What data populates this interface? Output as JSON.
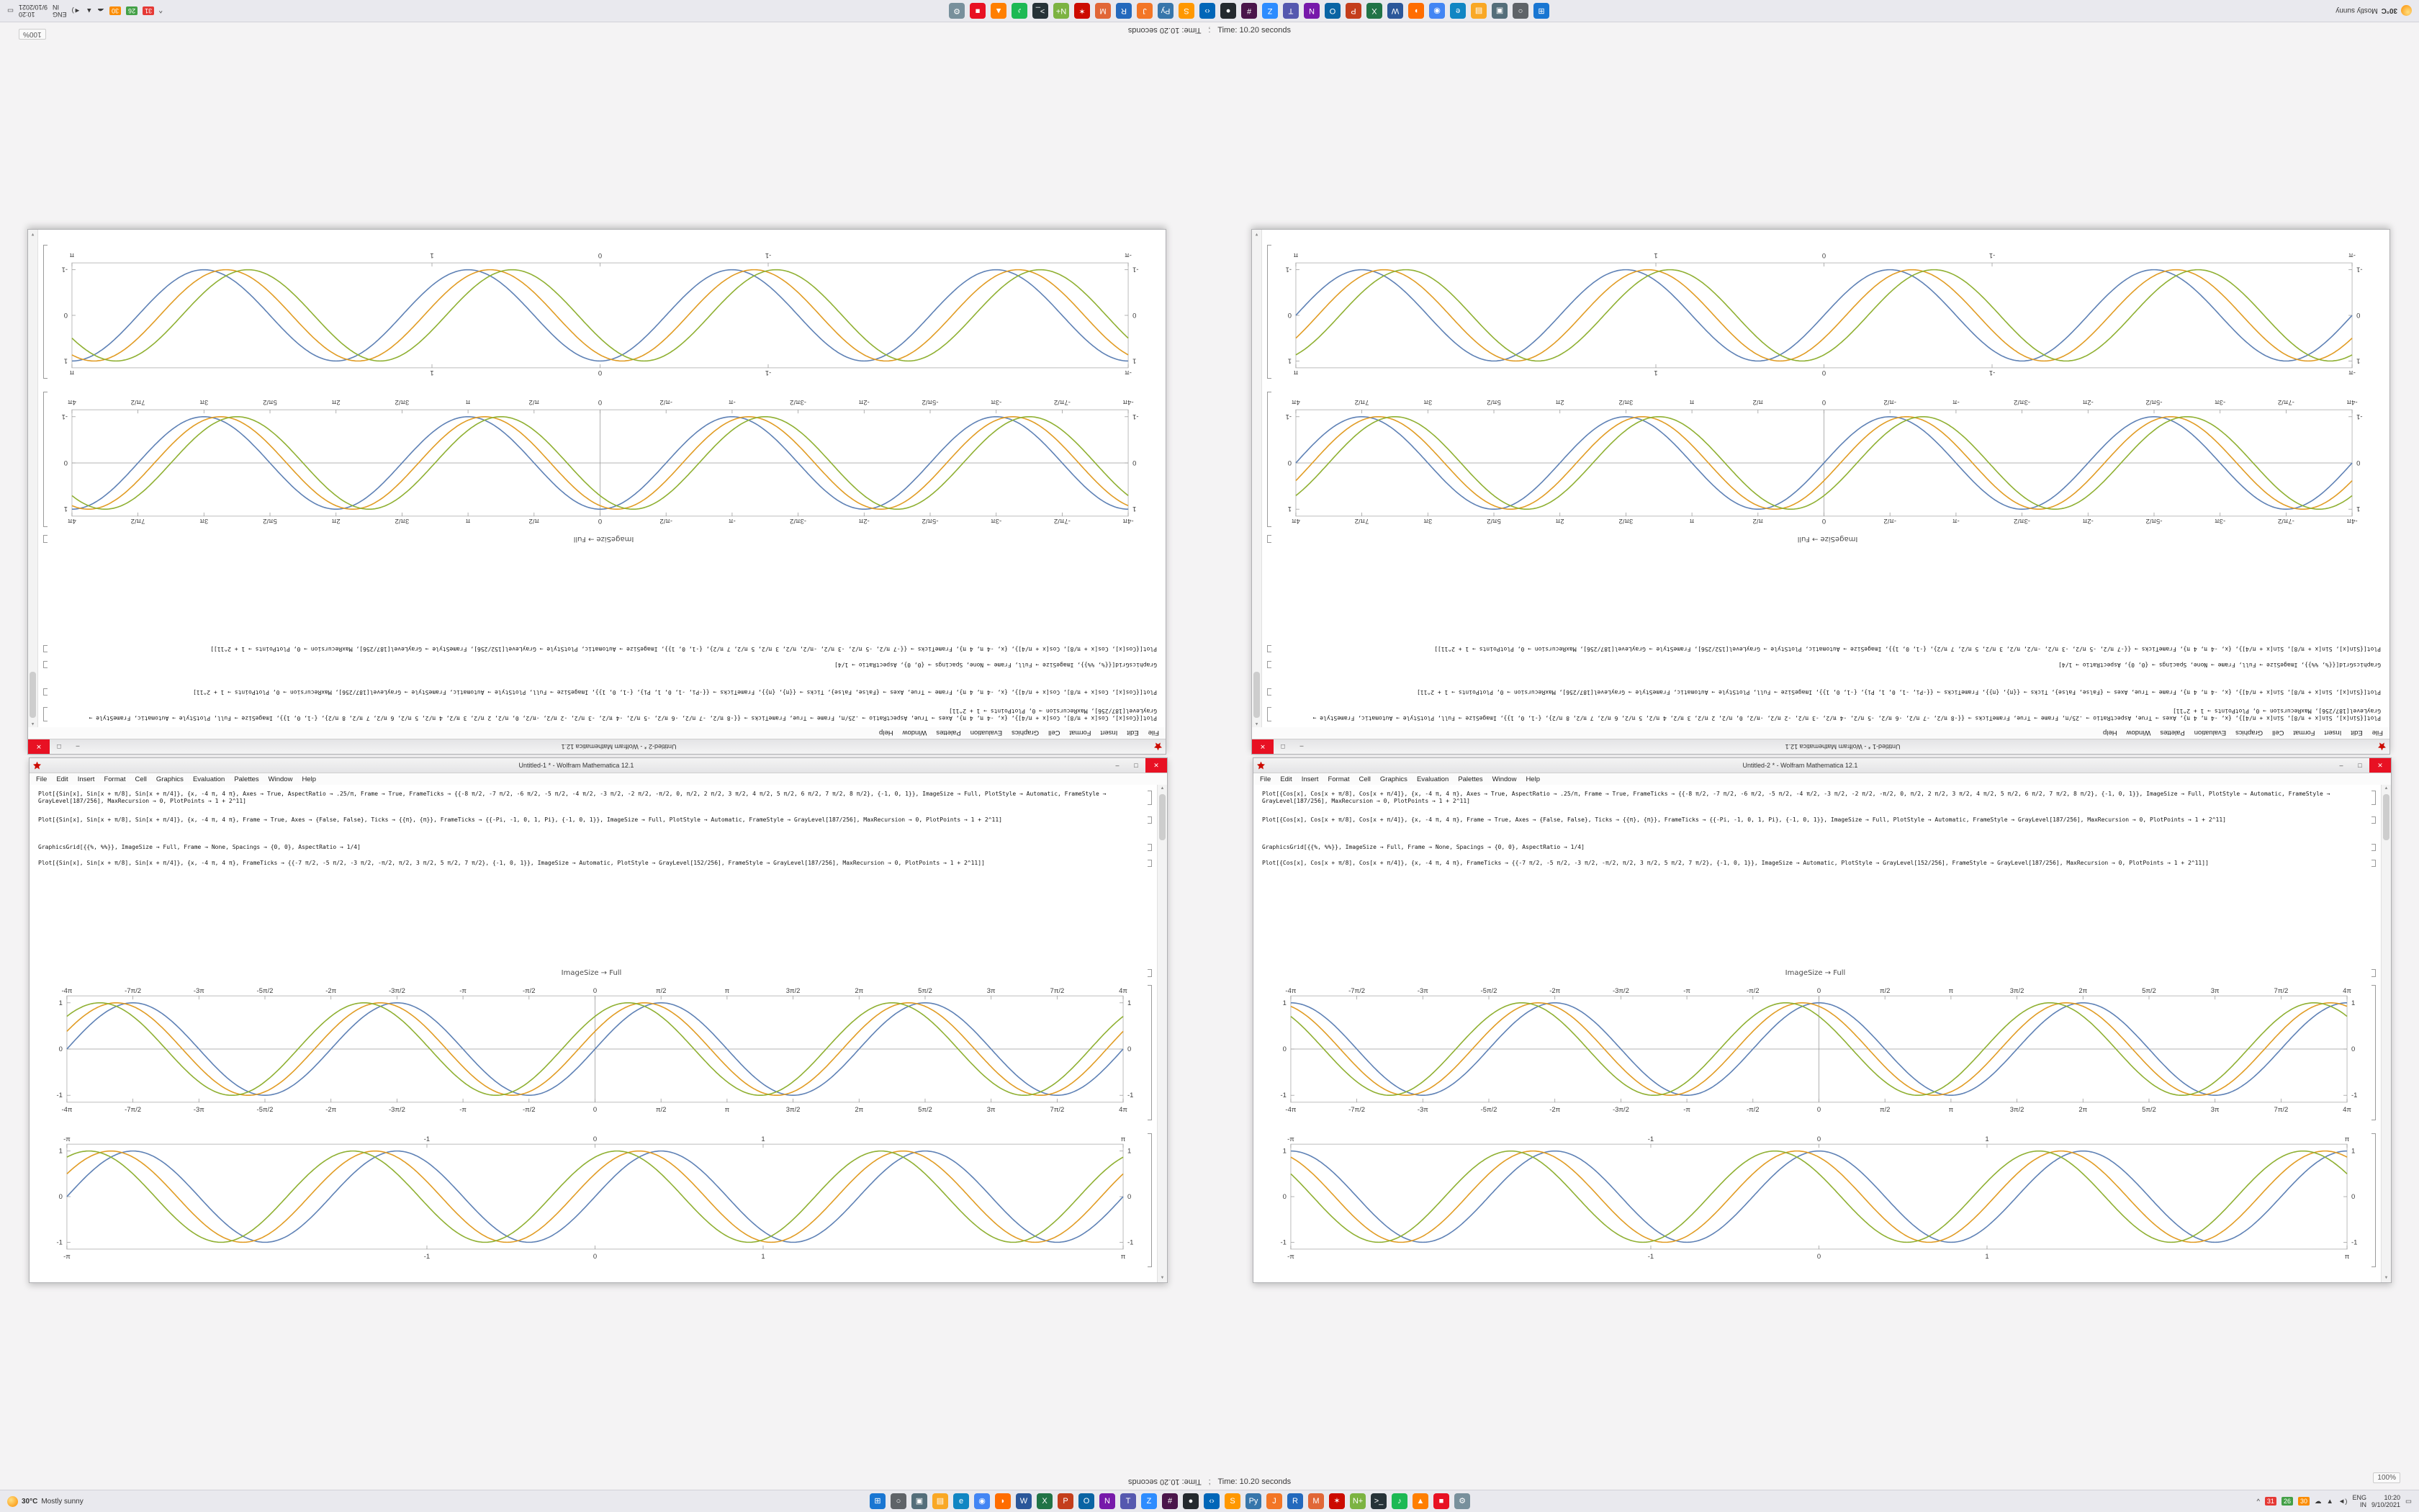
{
  "app": {
    "status_time": "Time: 10.20 seconds",
    "status_separator": ";",
    "zoom_badge": "100%"
  },
  "menus": [
    "File",
    "Edit",
    "Insert",
    "Format",
    "Cell",
    "Graphics",
    "Evaluation",
    "Palettes",
    "Window",
    "Help"
  ],
  "windows": [
    {
      "title": "Untitled-1 * - Wolfram Mathematica 12.1",
      "controls": {
        "minimize": "–",
        "maximize": "□",
        "close": "✕"
      },
      "cells": [
        {
          "type": "code",
          "lines": [
            "Plot[{Sin[x], Sin[x + π/8], Sin[x + π/4]}, {x, -4 π, 4 π}, Axes → True, AspectRatio → .25/π, Frame → True, FrameTicks → {{-8 π/2, -7 π/2, -6 π/2, -5 π/2, -4 π/2, -3 π/2, -2 π/2, -π/2, 0, π/2, 2 π/2, 3 π/2, 4 π/2, 5 π/2, 6 π/2, 7 π/2, 8 π/2}, {-1, 0, 1}}, ImageSize → Full, PlotStyle → Automatic, FrameStyle → GrayLevel[187/256], MaxRecursion → 0, PlotPoints → 1 + 2^11]"
          ]
        },
        {
          "type": "code",
          "lines": [
            "Plot[{Sin[x], Sin[x + π/8], Sin[x + π/4]}, {x, -4 π, 4 π}, Frame → True, Axes → {False, False}, Ticks → {{π}, {π}}, FrameTicks → {{-Pi, -1, 0, 1, Pi}, {-1, 0, 1}}, ImageSize → Full, PlotStyle → Automatic, FrameStyle → GrayLevel[187/256], MaxRecursion → 0, PlotPoints → 1 + 2^11]"
          ]
        },
        {
          "type": "code",
          "lines": [
            "GraphicsGrid[{{%, %%}}, ImageSize → Full, Frame → None, Spacings → {0, 0}, AspectRatio → 1/4]"
          ]
        },
        {
          "type": "code",
          "lines": [
            "Plot[{Sin[x], Sin[x + π/8], Sin[x + π/4]}, {x, -4 π, 4 π}, FrameTicks → {{-7 π/2, -5 π/2, -3 π/2, -π/2, π/2, 3 π/2, 5 π/2, 7 π/2}, {-1, 0, 1}}, ImageSize → Automatic, PlotStyle → GrayLevel[152/256], FrameStyle → GrayLevel[187/256], MaxRecursion → 0, PlotPoints → 1 + 2^11]]"
          ]
        },
        {
          "type": "caption",
          "text": "ImageSize → Full"
        },
        {
          "type": "plot",
          "chart": 0
        },
        {
          "type": "plot",
          "chart": 1
        }
      ]
    },
    {
      "title": "Untitled-2 * - Wolfram Mathematica 12.1",
      "controls": {
        "minimize": "–",
        "maximize": "□",
        "close": "✕"
      },
      "cells": [
        {
          "type": "code",
          "lines": [
            "Plot[{Cos[x], Cos[x + π/8], Cos[x + π/4]}, {x, -4 π, 4 π}, Axes → True, AspectRatio → .25/π, Frame → True, FrameTicks → {{-8 π/2, -7 π/2, -6 π/2, -5 π/2, -4 π/2, -3 π/2, -2 π/2, -π/2, 0, π/2, 2 π/2, 3 π/2, 4 π/2, 5 π/2, 6 π/2, 7 π/2, 8 π/2}, {-1, 0, 1}}, ImageSize → Full, PlotStyle → Automatic, FrameStyle → GrayLevel[187/256], MaxRecursion → 0, PlotPoints → 1 + 2^11]"
          ]
        },
        {
          "type": "code",
          "lines": [
            "Plot[{Cos[x], Cos[x + π/8], Cos[x + π/4]}, {x, -4 π, 4 π}, Frame → True, Axes → {False, False}, Ticks → {{π}, {π}}, FrameTicks → {{-Pi, -1, 0, 1, Pi}, {-1, 0, 1}}, ImageSize → Full, PlotStyle → Automatic, FrameStyle → GrayLevel[187/256], MaxRecursion → 0, PlotPoints → 1 + 2^11]"
          ]
        },
        {
          "type": "code",
          "lines": [
            "GraphicsGrid[{{%, %%}}, ImageSize → Full, Frame → None, Spacings → {0, 0}, AspectRatio → 1/4]"
          ]
        },
        {
          "type": "code",
          "lines": [
            "Plot[{Cos[x], Cos[x + π/8], Cos[x + π/4]}, {x, -4 π, 4 π}, FrameTicks → {{-7 π/2, -5 π/2, -3 π/2, -π/2, π/2, 3 π/2, 5 π/2, 7 π/2}, {-1, 0, 1}}, ImageSize → Automatic, PlotStyle → GrayLevel[152/256], FrameStyle → GrayLevel[187/256], MaxRecursion → 0, PlotPoints → 1 + 2^11]]"
          ]
        },
        {
          "type": "caption",
          "text": "ImageSize → Full"
        },
        {
          "type": "plot",
          "chart": 2
        },
        {
          "type": "plot",
          "chart": 3
        }
      ]
    }
  ],
  "chart_data": [
    {
      "id": "left-window-upper-plot",
      "type": "line",
      "title": "",
      "functions": [
        "Sin[x]",
        "Sin[x + π/8]",
        "Sin[x + π/4]"
      ],
      "base": "sin",
      "k": 1,
      "phases": [
        0,
        0.3927,
        0.7854
      ],
      "x_range": [
        -12.566,
        12.566
      ],
      "y_range": [
        -1.15,
        1.15
      ],
      "x_ticks": [
        "-4π",
        "-7π/2",
        "-3π",
        "-5π/2",
        "-2π",
        "-3π/2",
        "-π",
        "-π/2",
        "0",
        "π/2",
        "π",
        "3π/2",
        "2π",
        "5π/2",
        "3π",
        "7π/2",
        "4π"
      ],
      "x_tick_values": [
        -12.566,
        -10.996,
        -9.425,
        -7.854,
        -6.283,
        -4.712,
        -3.1416,
        -1.5708,
        0,
        1.5708,
        3.1416,
        4.712,
        6.283,
        7.854,
        9.425,
        10.996,
        12.566
      ],
      "y_ticks": [
        "-1",
        "0",
        "1"
      ],
      "y_tick_values": [
        -1,
        0,
        1
      ],
      "axes": true,
      "frame": true,
      "grid": false,
      "legend": "none",
      "colors": [
        "#5e81b5",
        "#e19c24",
        "#8fb032"
      ]
    },
    {
      "id": "left-window-lower-plot",
      "type": "line",
      "title": "",
      "functions": [
        "Sin[4 x]",
        "Sin[4 x + π/6]",
        "Sin[4 x + π/3]"
      ],
      "base": "sin",
      "k": 4,
      "phases": [
        0,
        0.5236,
        1.0472
      ],
      "x_range": [
        -3.1416,
        3.1416
      ],
      "y_range": [
        -1.15,
        1.15
      ],
      "x_ticks": [
        "-π",
        "-1",
        "0",
        "1",
        "π"
      ],
      "x_tick_values": [
        -3.1416,
        -1,
        0,
        1,
        3.1416
      ],
      "y_ticks": [
        "-1",
        "0",
        "1"
      ],
      "y_tick_values": [
        -1,
        0,
        1
      ],
      "axes": false,
      "frame": true,
      "grid": false,
      "legend": "none",
      "colors": [
        "#5e81b5",
        "#e19c24",
        "#8fb032"
      ]
    },
    {
      "id": "right-window-upper-plot",
      "type": "line",
      "title": "",
      "functions": [
        "Cos[x]",
        "Cos[x + π/8]",
        "Cos[x + π/4]"
      ],
      "base": "cos",
      "k": 1,
      "phases": [
        0,
        0.3927,
        0.7854
      ],
      "x_range": [
        -12.566,
        12.566
      ],
      "y_range": [
        -1.15,
        1.15
      ],
      "x_ticks": [
        "-4π",
        "-7π/2",
        "-3π",
        "-5π/2",
        "-2π",
        "-3π/2",
        "-π",
        "-π/2",
        "0",
        "π/2",
        "π",
        "3π/2",
        "2π",
        "5π/2",
        "3π",
        "7π/2",
        "4π"
      ],
      "x_tick_values": [
        -12.566,
        -10.996,
        -9.425,
        -7.854,
        -6.283,
        -4.712,
        -3.1416,
        -1.5708,
        0,
        1.5708,
        3.1416,
        4.712,
        6.283,
        7.854,
        9.425,
        10.996,
        12.566
      ],
      "y_ticks": [
        "-1",
        "0",
        "1"
      ],
      "y_tick_values": [
        -1,
        0,
        1
      ],
      "axes": true,
      "frame": true,
      "grid": false,
      "legend": "none",
      "colors": [
        "#5e81b5",
        "#e19c24",
        "#8fb032"
      ]
    },
    {
      "id": "right-window-lower-plot",
      "type": "line",
      "title": "",
      "functions": [
        "Cos[4 x]",
        "Cos[4 x + π/6]",
        "Cos[4 x + π/3]"
      ],
      "base": "cos",
      "k": 4,
      "phases": [
        0,
        0.5236,
        1.0472
      ],
      "x_range": [
        -3.1416,
        3.1416
      ],
      "y_range": [
        -1.15,
        1.15
      ],
      "x_ticks": [
        "-π",
        "-1",
        "0",
        "1",
        "π"
      ],
      "x_tick_values": [
        -3.1416,
        -1,
        0,
        1,
        3.1416
      ],
      "y_ticks": [
        "-1",
        "0",
        "1"
      ],
      "y_tick_values": [
        -1,
        0,
        1
      ],
      "axes": false,
      "frame": true,
      "grid": false,
      "legend": "none",
      "colors": [
        "#5e81b5",
        "#e19c24",
        "#8fb032"
      ]
    }
  ],
  "taskbar": {
    "widget": {
      "temp": "30°C",
      "condition": "Mostly sunny"
    },
    "icons": [
      {
        "name": "start",
        "glyph": "⊞",
        "bg": "#1976d2"
      },
      {
        "name": "search",
        "glyph": "○",
        "bg": "#5f6368"
      },
      {
        "name": "task-view",
        "glyph": "▣",
        "bg": "#546e7a"
      },
      {
        "name": "file-explorer",
        "glyph": "▤",
        "bg": "#f9a825"
      },
      {
        "name": "edge",
        "glyph": "e",
        "bg": "#1186c3"
      },
      {
        "name": "chrome",
        "glyph": "◉",
        "bg": "#4285f4"
      },
      {
        "name": "firefox",
        "glyph": "◗",
        "bg": "#ff6d00"
      },
      {
        "name": "word",
        "glyph": "W",
        "bg": "#2b579a"
      },
      {
        "name": "excel",
        "glyph": "X",
        "bg": "#217346"
      },
      {
        "name": "powerpoint",
        "glyph": "P",
        "bg": "#c43e1c"
      },
      {
        "name": "outlook",
        "glyph": "O",
        "bg": "#0a64a4"
      },
      {
        "name": "onenote",
        "glyph": "N",
        "bg": "#7719aa"
      },
      {
        "name": "teams",
        "glyph": "T",
        "bg": "#5558af"
      },
      {
        "name": "zoom",
        "glyph": "Z",
        "bg": "#2d8cff"
      },
      {
        "name": "slack",
        "glyph": "#",
        "bg": "#4a154b"
      },
      {
        "name": "github",
        "glyph": "●",
        "bg": "#24292e"
      },
      {
        "name": "vscode",
        "glyph": "‹›",
        "bg": "#0066b8"
      },
      {
        "name": "sublime",
        "glyph": "S",
        "bg": "#ff9800"
      },
      {
        "name": "python",
        "glyph": "Py",
        "bg": "#3776ab"
      },
      {
        "name": "jupyter",
        "glyph": "J",
        "bg": "#f37626"
      },
      {
        "name": "rstudio",
        "glyph": "R",
        "bg": "#2369bd"
      },
      {
        "name": "matlab",
        "glyph": "M",
        "bg": "#e16737"
      },
      {
        "name": "mathematica",
        "glyph": "✶",
        "bg": "#cc0b00"
      },
      {
        "name": "notepad-plus",
        "glyph": "N+",
        "bg": "#7cb342"
      },
      {
        "name": "terminal",
        "glyph": ">_",
        "bg": "#263238"
      },
      {
        "name": "spotify",
        "glyph": "♪",
        "bg": "#1db954"
      },
      {
        "name": "vlc",
        "glyph": "▲",
        "bg": "#ff7f00"
      },
      {
        "name": "recorder",
        "glyph": "■",
        "bg": "#e81123"
      },
      {
        "name": "settings",
        "glyph": "⚙",
        "bg": "#78909c"
      }
    ],
    "tray": [
      {
        "name": "expand",
        "text": "^"
      },
      {
        "name": "temp-1",
        "text": "31",
        "bg": "#e53935"
      },
      {
        "name": "temp-2",
        "text": "26",
        "bg": "#43a047"
      },
      {
        "name": "temp-3",
        "text": "30",
        "bg": "#fb8c00"
      },
      {
        "name": "onedrive",
        "text": "☁"
      },
      {
        "name": "network",
        "text": "▲"
      },
      {
        "name": "volume",
        "text": "◄)"
      },
      {
        "name": "language",
        "stack": [
          "ENG",
          "IN"
        ]
      },
      {
        "name": "clock",
        "time": "10:20",
        "date": "9/10/2021"
      },
      {
        "name": "notifications",
        "text": "▭"
      }
    ]
  }
}
